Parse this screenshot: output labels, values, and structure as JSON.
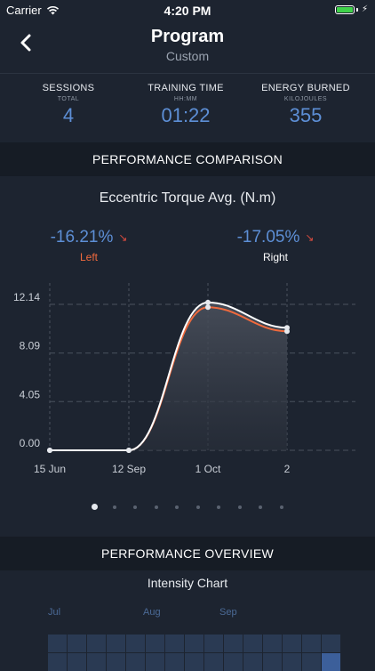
{
  "status_bar": {
    "carrier": "Carrier",
    "time": "4:20 PM"
  },
  "nav": {
    "title": "Program",
    "subtitle": "Custom"
  },
  "stats": [
    {
      "label": "SESSIONS",
      "sublabel": "TOTAL",
      "value": "4"
    },
    {
      "label": "TRAINING TIME",
      "sublabel": "HH:MM",
      "value": "01:22"
    },
    {
      "label": "ENERGY BURNED",
      "sublabel": "KILOJOULES",
      "value": "355"
    }
  ],
  "performance_comparison": {
    "header": "PERFORMANCE COMPARISON",
    "chart_title": "Eccentric Torque Avg. (N.m)",
    "left": {
      "value": "-16.21%",
      "label": "Left",
      "trend": "down"
    },
    "right": {
      "value": "-17.05%",
      "label": "Right",
      "trend": "down"
    }
  },
  "chart_data": {
    "type": "line",
    "categories": [
      "15 Jun",
      "12 Sep",
      "1 Oct",
      "2"
    ],
    "series": [
      {
        "name": "Left",
        "values": [
          0.0,
          0.0,
          11.9,
          9.9
        ],
        "color": "#f06a3d"
      },
      {
        "name": "Right",
        "values": [
          0.0,
          0.0,
          12.3,
          10.2
        ],
        "color": "#ffffff"
      }
    ],
    "yticks": [
      "12.14",
      "8.09",
      "4.05",
      "0.00"
    ],
    "ylim": [
      0,
      12.14
    ],
    "grid": true,
    "area_fill": true
  },
  "pager": {
    "count": 10,
    "active_index": 0
  },
  "performance_overview": {
    "header": "PERFORMANCE OVERVIEW",
    "chart_title": "Intensity Chart"
  },
  "intensity_months": [
    "Jul",
    "Aug",
    "Sep"
  ],
  "colors": {
    "background": "#1d2430",
    "accent_blue": "#5d8fd6",
    "left_series": "#f06a3d",
    "trend_down": "#d94b3f"
  }
}
